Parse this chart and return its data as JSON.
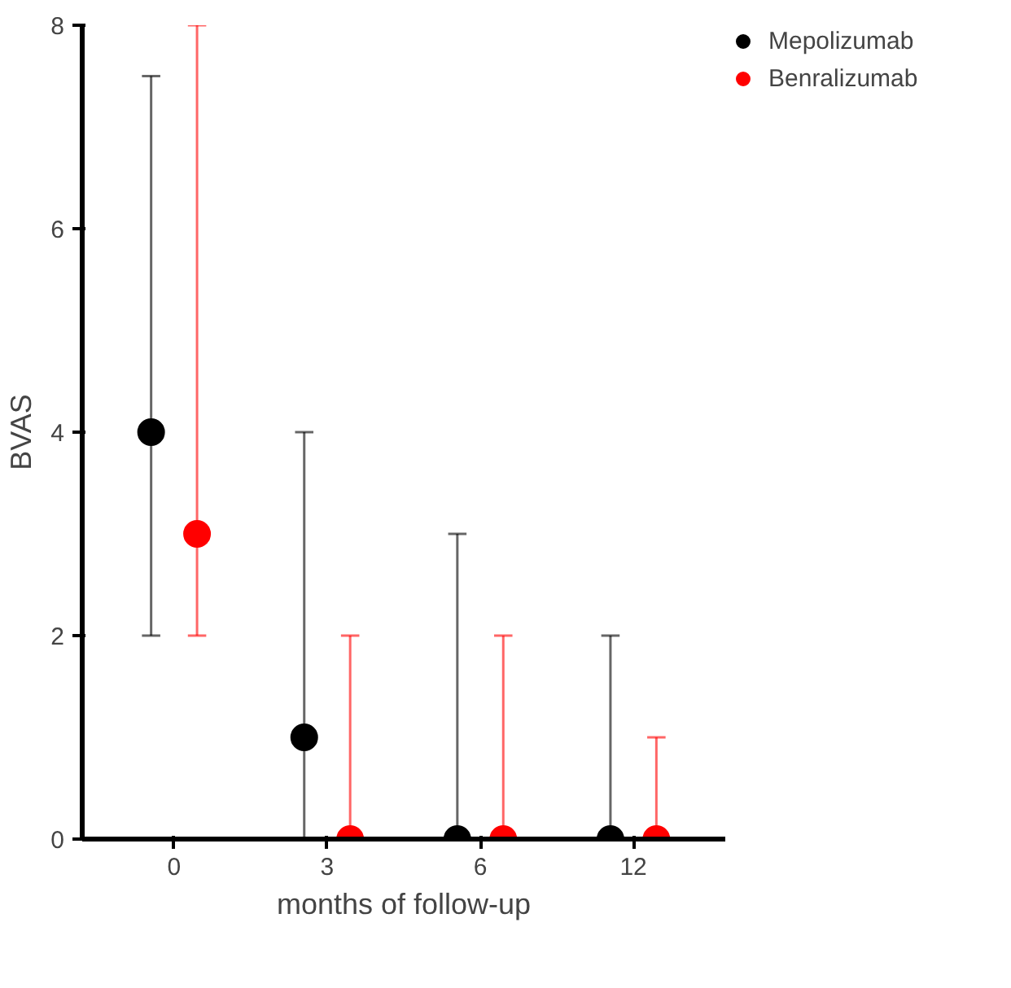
{
  "chart_data": {
    "type": "scatter",
    "xlabel": "months of follow-up",
    "ylabel": "BVAS",
    "categories": [
      "0",
      "3",
      "6",
      "12"
    ],
    "ylim": [
      0,
      8
    ],
    "yticks": [
      0,
      2,
      4,
      6,
      8
    ],
    "grid": false,
    "legend": "top right",
    "marker": "circle",
    "series": [
      {
        "name": "Mepolizumab",
        "color": "#000000",
        "values": [
          4,
          1,
          0,
          0
        ],
        "errors": [
          [
            2,
            7.5
          ],
          [
            0,
            4
          ],
          [
            0,
            3
          ],
          [
            0,
            2
          ]
        ]
      },
      {
        "name": "Benralizumab",
        "color": "#ff0000",
        "values": [
          3,
          0,
          0,
          0
        ],
        "errors": [
          [
            2,
            8
          ],
          [
            0,
            2
          ],
          [
            0,
            2
          ],
          [
            0,
            1
          ]
        ]
      }
    ]
  }
}
